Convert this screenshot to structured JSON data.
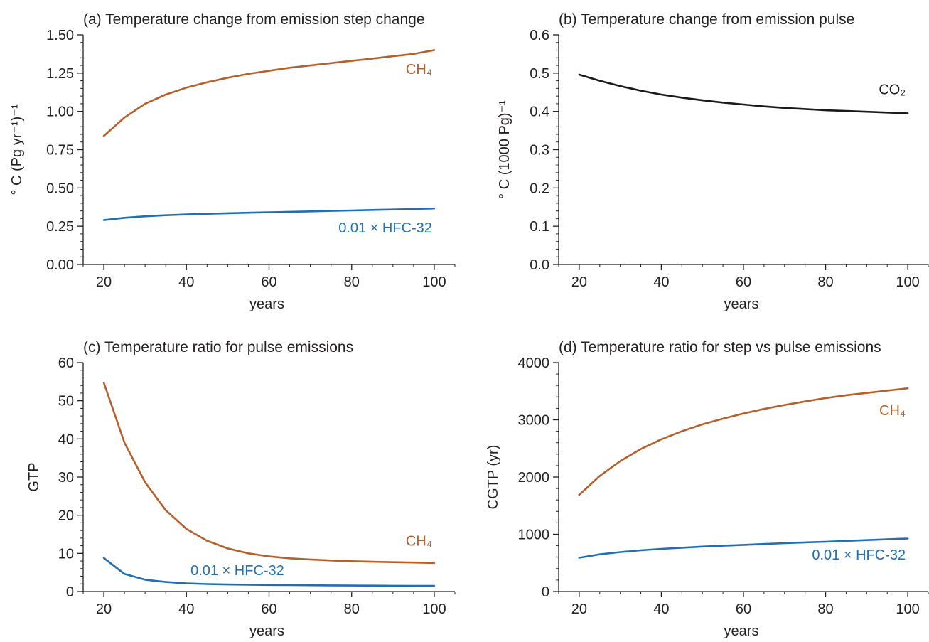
{
  "colors": {
    "ch4": "#b5602a",
    "hfc": "#1f6fb5",
    "co2": "#1a1a1a",
    "axis": "#231f20"
  },
  "chart_data": [
    {
      "id": "a",
      "type": "line",
      "title": "(a) Temperature change from emission step change",
      "xlabel": "years",
      "ylabel": "° C (Pg yr⁻¹)⁻¹",
      "xlim": [
        15,
        105
      ],
      "ylim": [
        0,
        1.5
      ],
      "xticks": [
        20,
        40,
        60,
        80,
        100
      ],
      "yticks": [
        0,
        0.25,
        0.5,
        0.75,
        1.0,
        1.25,
        1.5
      ],
      "ytick_labels": [
        "0.00",
        "0.25",
        "0.50",
        "0.75",
        "1.00",
        "1.25",
        "1.50"
      ],
      "grid": false,
      "x": [
        20,
        25,
        30,
        35,
        40,
        45,
        50,
        55,
        60,
        65,
        70,
        75,
        80,
        85,
        90,
        95,
        100
      ],
      "series": [
        {
          "name": "CH₄",
          "color": "#b5602a",
          "label_x": 100,
          "label_y": 1.245,
          "values": [
            0.84,
            0.96,
            1.05,
            1.11,
            1.155,
            1.19,
            1.22,
            1.245,
            1.265,
            1.285,
            1.3,
            1.315,
            1.33,
            1.345,
            1.36,
            1.375,
            1.4
          ]
        },
        {
          "name": "0.01 × HFC-32",
          "color": "#1f6fb5",
          "label_x": 100,
          "label_y": 0.21,
          "values": [
            0.29,
            0.305,
            0.315,
            0.322,
            0.327,
            0.331,
            0.335,
            0.338,
            0.341,
            0.344,
            0.347,
            0.35,
            0.353,
            0.356,
            0.359,
            0.362,
            0.366
          ]
        }
      ]
    },
    {
      "id": "b",
      "type": "line",
      "title": "(b) Temperature change from emission pulse",
      "xlabel": "years",
      "ylabel": "° C (1000 Pg)⁻¹",
      "xlim": [
        15,
        105
      ],
      "ylim": [
        0,
        0.6
      ],
      "xticks": [
        20,
        40,
        60,
        80,
        100
      ],
      "yticks": [
        0,
        0.1,
        0.2,
        0.3,
        0.4,
        0.5,
        0.6
      ],
      "ytick_labels": [
        "0.0",
        "0.1",
        "0.2",
        "0.3",
        "0.4",
        "0.5",
        "0.6"
      ],
      "grid": false,
      "x": [
        20,
        25,
        30,
        35,
        40,
        45,
        50,
        55,
        60,
        65,
        70,
        75,
        80,
        85,
        90,
        95,
        100
      ],
      "series": [
        {
          "name": "CO₂",
          "color": "#1a1a1a",
          "label_x": 100,
          "label_y": 0.445,
          "values": [
            0.496,
            0.48,
            0.466,
            0.454,
            0.444,
            0.436,
            0.429,
            0.423,
            0.418,
            0.413,
            0.409,
            0.406,
            0.403,
            0.401,
            0.399,
            0.397,
            0.395
          ]
        }
      ]
    },
    {
      "id": "c",
      "type": "line",
      "title": "(c) Temperature ratio for pulse emissions",
      "xlabel": "years",
      "ylabel": "GTP",
      "xlim": [
        15,
        105
      ],
      "ylim": [
        0,
        60
      ],
      "xticks": [
        20,
        40,
        60,
        80,
        100
      ],
      "yticks": [
        0,
        10,
        20,
        30,
        40,
        50,
        60
      ],
      "ytick_labels": [
        "0",
        "10",
        "20",
        "30",
        "40",
        "50",
        "60"
      ],
      "grid": false,
      "x": [
        20,
        25,
        30,
        35,
        40,
        45,
        50,
        55,
        60,
        65,
        70,
        75,
        80,
        85,
        90,
        95,
        100
      ],
      "series": [
        {
          "name": "CH₄",
          "color": "#b5602a",
          "label_x": 100,
          "label_y": 12.0,
          "values": [
            54.7,
            39.0,
            28.6,
            21.3,
            16.4,
            13.3,
            11.3,
            10.0,
            9.2,
            8.7,
            8.4,
            8.15,
            7.95,
            7.8,
            7.7,
            7.6,
            7.5
          ]
        },
        {
          "name": "0.01 × HFC-32",
          "color": "#1f6fb5",
          "label_x": 41,
          "label_y": 4.3,
          "values": [
            8.8,
            4.6,
            3.1,
            2.5,
            2.15,
            1.95,
            1.85,
            1.78,
            1.72,
            1.68,
            1.64,
            1.6,
            1.57,
            1.54,
            1.51,
            1.49,
            1.47
          ]
        }
      ]
    },
    {
      "id": "d",
      "type": "line",
      "title": "(d) Temperature ratio for step vs pulse emissions",
      "xlabel": "years",
      "ylabel": "CGTP (yr)",
      "xlim": [
        15,
        105
      ],
      "ylim": [
        0,
        4000
      ],
      "xticks": [
        20,
        40,
        60,
        80,
        100
      ],
      "yticks": [
        0,
        1000,
        2000,
        3000,
        4000
      ],
      "ytick_labels": [
        "0",
        "1000",
        "2000",
        "3000",
        "4000"
      ],
      "grid": false,
      "x": [
        20,
        25,
        30,
        35,
        40,
        45,
        50,
        55,
        60,
        65,
        70,
        75,
        80,
        85,
        90,
        95,
        100
      ],
      "series": [
        {
          "name": "CH₄",
          "color": "#b5602a",
          "label_x": 100,
          "label_y": 3080,
          "values": [
            1690,
            2020,
            2280,
            2490,
            2660,
            2800,
            2920,
            3020,
            3110,
            3190,
            3260,
            3320,
            3380,
            3430,
            3470,
            3510,
            3550
          ]
        },
        {
          "name": "0.01 × HFC-32",
          "color": "#1f6fb5",
          "label_x": 100,
          "label_y": 560,
          "values": [
            590,
            650,
            690,
            720,
            745,
            765,
            785,
            800,
            815,
            830,
            845,
            858,
            870,
            885,
            898,
            912,
            925
          ]
        }
      ]
    }
  ]
}
